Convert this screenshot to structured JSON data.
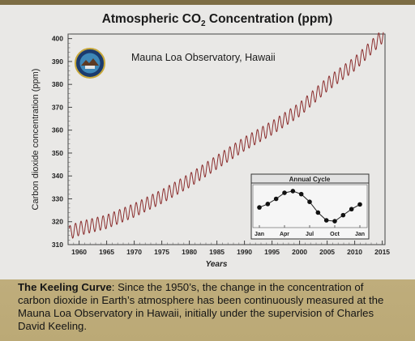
{
  "chart_data": {
    "type": "line",
    "title_main": "Atmospheric CO",
    "title_sub": "2",
    "title_end": " Concentration (ppm)",
    "subtitle": "Mauna Loa Observatory, Hawaii",
    "xlabel": "Years",
    "ylabel": "Carbon dioxide concentration (ppm)",
    "xlim": [
      1958,
      2015.5
    ],
    "ylim": [
      310,
      402
    ],
    "x_ticks": [
      1960,
      1965,
      1970,
      1975,
      1980,
      1985,
      1990,
      1995,
      2000,
      2005,
      2010,
      2015
    ],
    "y_ticks": [
      310,
      320,
      330,
      340,
      350,
      360,
      370,
      380,
      390,
      400
    ],
    "series": [
      {
        "x": [
          1958,
          1960,
          1965,
          1970,
          1975,
          1980,
          1985,
          1990,
          1995,
          2000,
          2005,
          2010,
          2015
        ],
        "values": [
          315,
          317,
          320,
          325,
          331,
          338,
          346,
          354,
          361,
          369,
          380,
          389,
          401
        ],
        "seasonal_amplitude_ppm": 3,
        "color": "#8a2c2c"
      }
    ],
    "inset": {
      "title": "Annual Cycle",
      "x_ticks": [
        "Jan",
        "Apr",
        "Jul",
        "Oct",
        "Jan"
      ],
      "values": [
        0.2,
        1.0,
        2.2,
        3.6,
        4.0,
        3.3,
        1.5,
        -1.0,
        -2.8,
        -3.0,
        -1.6,
        -0.2,
        0.9
      ],
      "ylim": [
        -4.5,
        5.5
      ]
    },
    "logo": "observatory-seal",
    "grid": false
  },
  "caption": {
    "bold": "The Keeling Curve",
    "text": ": Since the 1950’s, the change in the concentration of carbon dioxide in Earth’s atmosphere has been continuously measured at the Mauna Loa Observatory in Hawaii, initially under the supervision of Charles David Keeling."
  },
  "colors": {
    "panel": "#e9e8e6",
    "wall": "#c8b98f",
    "line": "#8a2c2c",
    "inset_box": "#f6f6f6"
  }
}
